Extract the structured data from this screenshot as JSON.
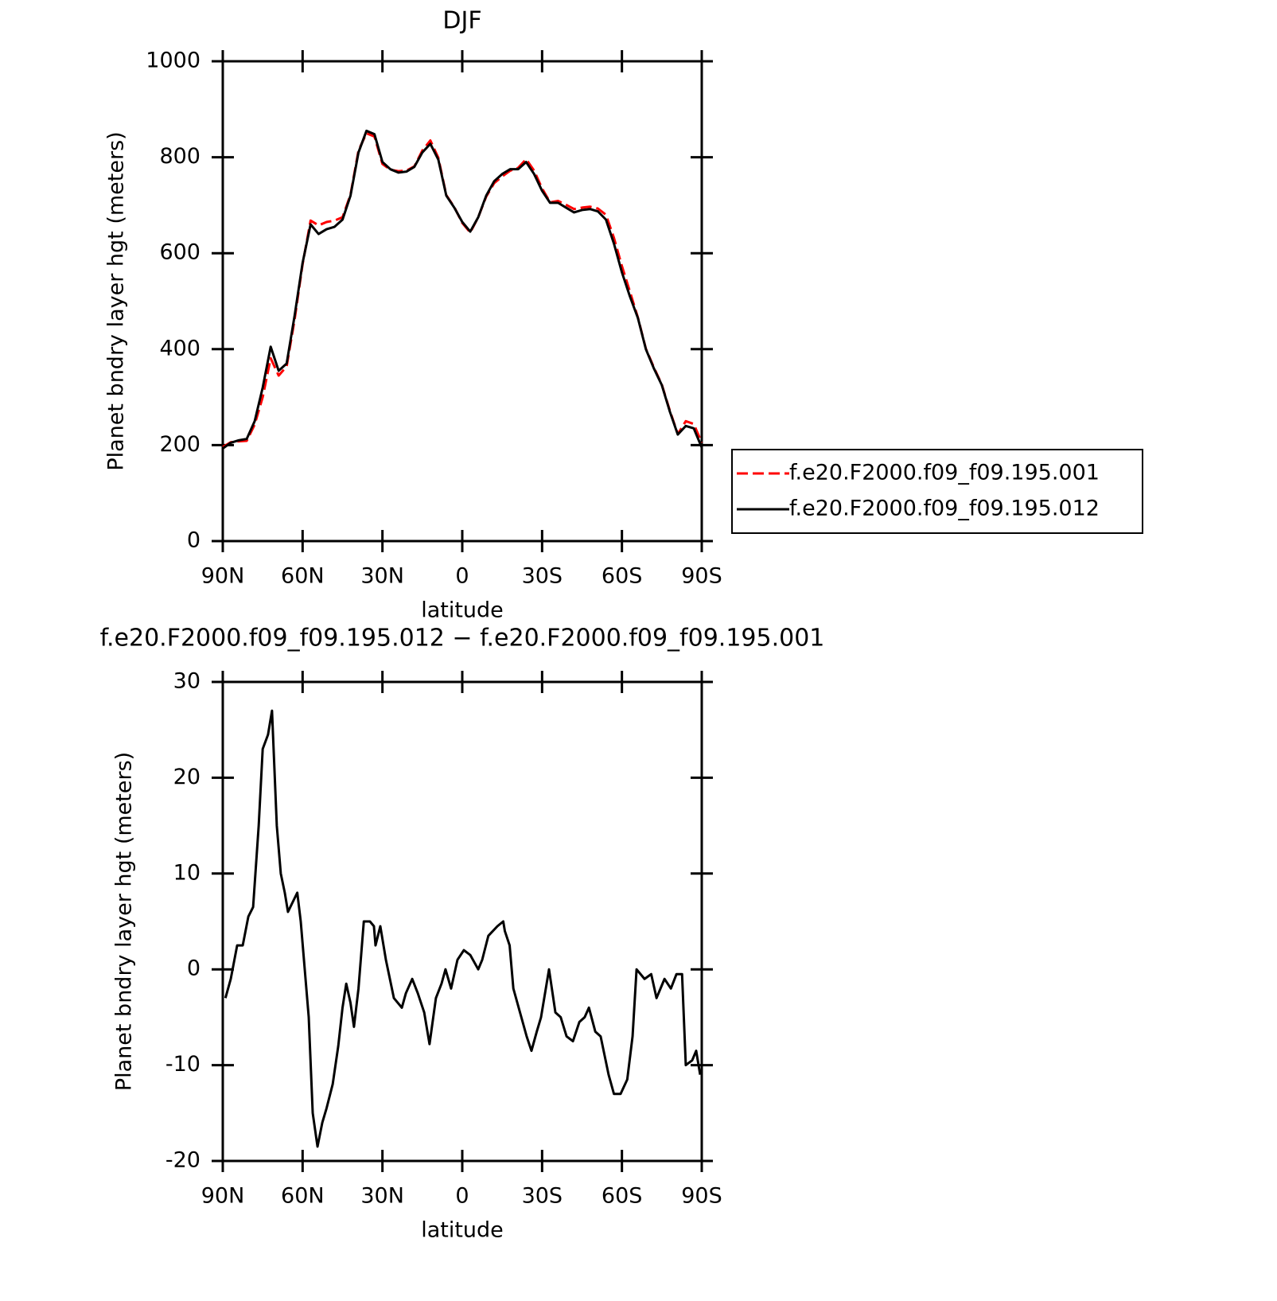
{
  "chart_data": [
    {
      "type": "line",
      "title": "DJF",
      "xlabel": "latitude",
      "ylabel": "Planet bndry layer hgt (meters)",
      "x": [
        90,
        87,
        84,
        81,
        78,
        75,
        72,
        69,
        66,
        63,
        60,
        57,
        54,
        51,
        48,
        45,
        42,
        39,
        36,
        33,
        30,
        27,
        24,
        21,
        18,
        15,
        12,
        9,
        6,
        3,
        0,
        -3,
        -6,
        -9,
        -12,
        -15,
        -18,
        -21,
        -24,
        -27,
        -30,
        -33,
        -36,
        -39,
        -42,
        -45,
        -48,
        -51,
        -54,
        -57,
        -60,
        -63,
        -66,
        -69,
        -72,
        -75,
        -78,
        -81,
        -84,
        -87,
        -90
      ],
      "series": [
        {
          "name": "f.e20.F2000.f09_f09.195.001",
          "color": "#ff0000",
          "dashed": true,
          "values": [
            196,
            206,
            208,
            209,
            243,
            300,
            381,
            345,
            364,
            462,
            577,
            668,
            658,
            665,
            668,
            675,
            722,
            814,
            850,
            843,
            786,
            774,
            771,
            772,
            781,
            814,
            835,
            799,
            721,
            696,
            663,
            643,
            675,
            718,
            746,
            760,
            772,
            778,
            796,
            772,
            735,
            706,
            709,
            701,
            692,
            695,
            697,
            693,
            680,
            632,
            573,
            520,
            466,
            401,
            362,
            326,
            272,
            223,
            250,
            244,
            205
          ]
        },
        {
          "name": "f.e20.F2000.f09_f09.195.012",
          "color": "#000000",
          "dashed": false,
          "values": [
            193,
            205,
            210,
            213,
            250,
            320,
            405,
            355,
            370,
            470,
            580,
            660,
            640,
            650,
            655,
            670,
            720,
            810,
            855,
            848,
            790,
            775,
            768,
            770,
            780,
            810,
            828,
            795,
            720,
            695,
            665,
            645,
            675,
            720,
            750,
            765,
            775,
            775,
            790,
            765,
            730,
            705,
            705,
            695,
            685,
            690,
            692,
            687,
            670,
            620,
            560,
            510,
            465,
            400,
            360,
            325,
            270,
            222,
            240,
            235,
            195
          ]
        }
      ],
      "xlim": [
        90,
        -90
      ],
      "ylim": [
        0,
        1000
      ],
      "xticks": [
        {
          "value": 90,
          "label": "90N"
        },
        {
          "value": 60,
          "label": "60N"
        },
        {
          "value": 30,
          "label": "30N"
        },
        0,
        {
          "value": -30,
          "label": "30S"
        },
        {
          "value": -60,
          "label": "60S"
        },
        {
          "value": -90,
          "label": "90S"
        }
      ],
      "yticks": [
        0,
        200,
        400,
        600,
        800,
        1000
      ],
      "legend": "right"
    },
    {
      "type": "line",
      "title": "f.e20.F2000.f09_f09.195.012 − f.e20.F2000.f09_f09.195.001",
      "xlabel": "latitude",
      "ylabel": "Planet bndry layer hgt (meters)",
      "x": [
        89,
        87,
        84.6,
        82.5,
        80.4,
        78.6,
        76.5,
        75,
        73,
        71.5,
        69.7,
        68.2,
        66.7,
        65.5,
        62,
        60.7,
        57.7,
        56.2,
        54.4,
        52.6,
        51,
        48.7,
        46.6,
        45,
        43.6,
        42,
        40.7,
        39,
        37,
        34.7,
        33.2,
        32.6,
        30.8,
        28.7,
        25.7,
        22.7,
        21.2,
        18.8,
        16.7,
        14.3,
        12.3,
        9.9,
        7.8,
        6.3,
        4.2,
        1.8,
        -0.6,
        -3,
        -6,
        -7.5,
        -9.8,
        -13.2,
        -15.4,
        -16,
        -17.8,
        -19.2,
        -22.2,
        -24.2,
        -26,
        -28,
        -29.6,
        -32.6,
        -35,
        -37,
        -39.2,
        -41.6,
        -44,
        -46,
        -47.6,
        -50,
        -52,
        -55,
        -57,
        -59.5,
        -62,
        -64,
        -65.5,
        -68.5,
        -71,
        -73,
        -76,
        -78.4,
        -80.5,
        -82.6,
        -84,
        -86.4,
        -87.9,
        -89.4
      ],
      "series": [
        {
          "color": "#000000",
          "dashed": false,
          "values": [
            -3,
            -1,
            2.5,
            2.5,
            5.5,
            6.5,
            15,
            23,
            24.5,
            27,
            15,
            10,
            8,
            6,
            8,
            5,
            -5,
            -15,
            -18.5,
            -16,
            -14.5,
            -12,
            -8,
            -4,
            -1.5,
            -3.5,
            -6,
            -2,
            5,
            5,
            4.5,
            2.5,
            4.5,
            1,
            -3,
            -4,
            -2.5,
            -1,
            -2.5,
            -4.5,
            -7.8,
            -3,
            -1.5,
            0,
            -2,
            1,
            2,
            1.5,
            0,
            1,
            3.5,
            4.5,
            5,
            4,
            2.5,
            -2,
            -5,
            -7,
            -8.5,
            -6.5,
            -5,
            0,
            -4.5,
            -5,
            -7,
            -7.5,
            -5.5,
            -5,
            -4,
            -6.5,
            -7,
            -11,
            -13,
            -13,
            -11.5,
            -7,
            0,
            -1,
            -0.5,
            -3,
            -1,
            -2,
            -0.5,
            -0.5,
            -10,
            -9.5,
            -8.5,
            -11
          ]
        }
      ],
      "xlim": [
        90,
        -90
      ],
      "ylim": [
        -20,
        30
      ],
      "xticks": [
        {
          "value": 90,
          "label": "90N"
        },
        {
          "value": 60,
          "label": "60N"
        },
        {
          "value": 30,
          "label": "30N"
        },
        0,
        {
          "value": -30,
          "label": "30S"
        },
        {
          "value": -60,
          "label": "60S"
        },
        {
          "value": -90,
          "label": "90S"
        }
      ],
      "yticks": [
        -20,
        -10,
        0,
        10,
        20,
        30
      ]
    }
  ]
}
